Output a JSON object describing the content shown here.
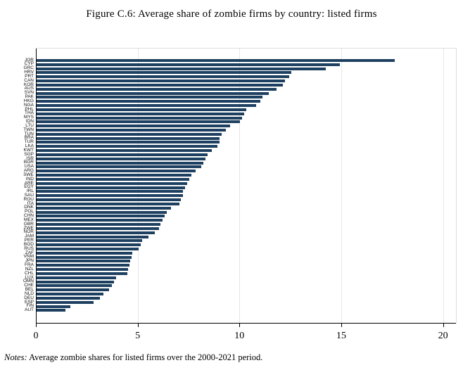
{
  "figure": {
    "title": "Figure C.6: Average share of zombie firms by country: listed firms",
    "notes_label": "Notes:",
    "notes_text": " Average zombie shares for listed firms over the 2000-2021 period."
  },
  "chart_data": {
    "type": "bar",
    "orientation": "horizontal",
    "title": "Figure C.6: Average share of zombie firms by country: listed firms",
    "xlabel": "",
    "ylabel": "",
    "xlim": [
      0,
      20.7
    ],
    "xticks": [
      0,
      5,
      10,
      15,
      20
    ],
    "grid": true,
    "legend": "none",
    "bar_color": "#1e4060",
    "categories": [
      "JOR",
      "CYP",
      "GRC",
      "HRV",
      "PRT",
      "CAN",
      "KOR",
      "AUS",
      "SVN",
      "PAK",
      "HKG",
      "NGA",
      "PHL",
      "THA",
      "MYS",
      "IDN",
      "LTU",
      "TWN",
      "TUN",
      "BRA",
      "TUR",
      "LKA",
      "KWT",
      "SGP",
      "ISR",
      "BGR",
      "USA",
      "ARG",
      "SWE",
      "IND",
      "ARE",
      "EGY",
      "IRL",
      "SAU",
      "ROU",
      "ITA",
      "DNK",
      "POL",
      "CHN",
      "MEX",
      "GBR",
      "ZWE",
      "NOR",
      "JAM",
      "PER",
      "BGD",
      "RUS",
      "ZAF",
      "VNM",
      "JPN",
      "FRA",
      "NZL",
      "CHL",
      "LUX",
      "OMN",
      "CHE",
      "BEL",
      "NLD",
      "DEU",
      "ESP",
      "FIN",
      "AUT"
    ],
    "values": [
      17.6,
      14.9,
      14.2,
      12.5,
      12.4,
      12.2,
      12.1,
      11.8,
      11.4,
      11.1,
      11.0,
      10.8,
      10.3,
      10.2,
      10.1,
      10.0,
      9.5,
      9.3,
      9.1,
      9.0,
      9.0,
      8.9,
      8.6,
      8.4,
      8.3,
      8.2,
      8.1,
      7.8,
      7.6,
      7.5,
      7.4,
      7.3,
      7.2,
      7.2,
      7.1,
      7.0,
      6.6,
      6.4,
      6.3,
      6.2,
      6.1,
      6.0,
      5.8,
      5.5,
      5.2,
      5.1,
      5.0,
      4.7,
      4.65,
      4.6,
      4.55,
      4.5,
      4.45,
      3.9,
      3.8,
      3.7,
      3.55,
      3.3,
      3.1,
      2.8,
      1.65,
      1.4
    ]
  }
}
